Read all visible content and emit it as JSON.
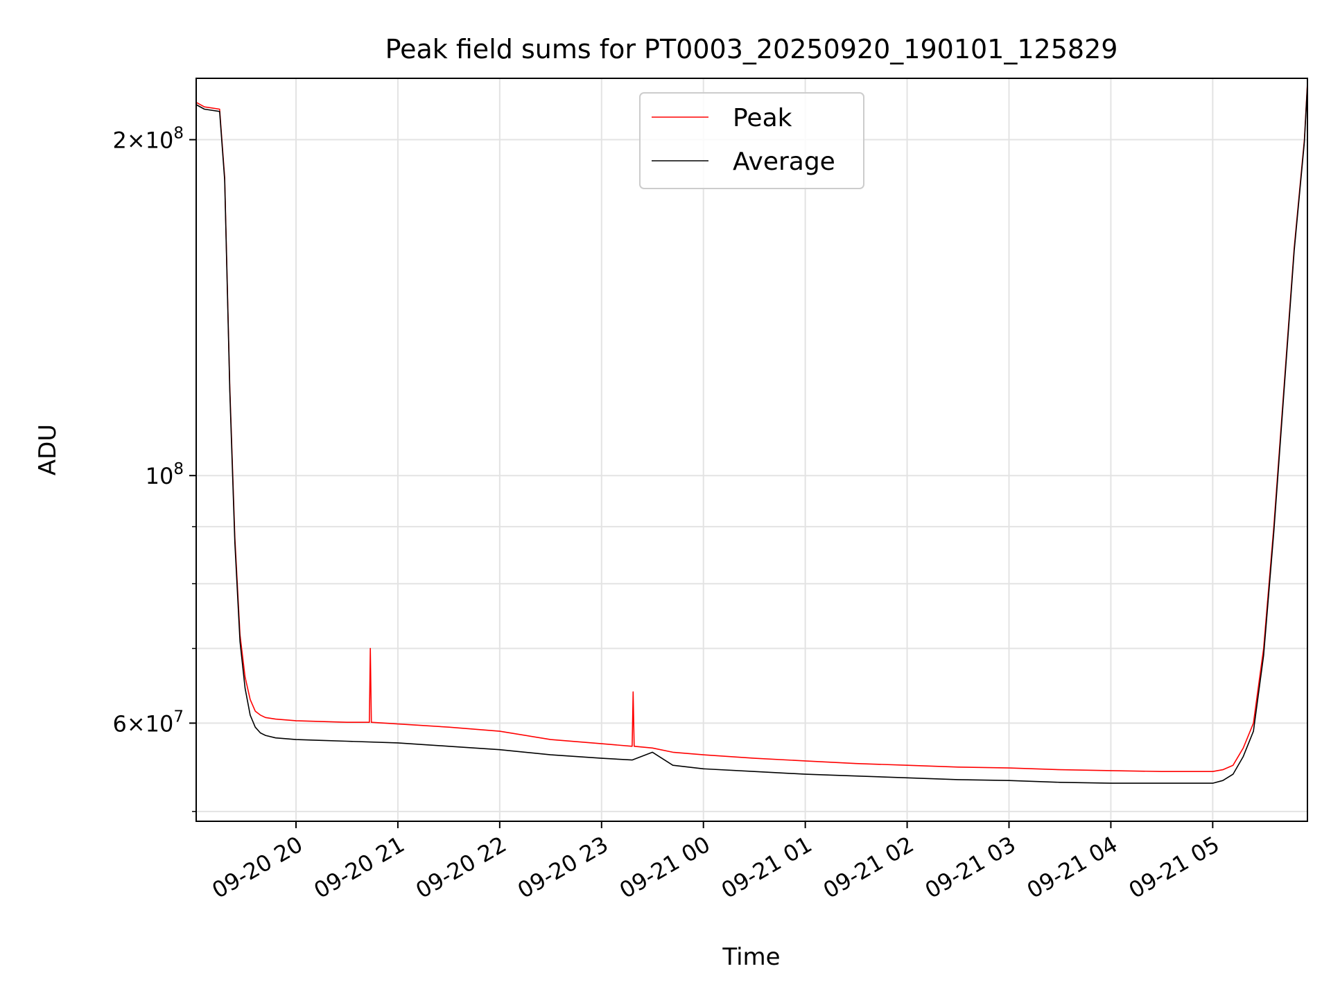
{
  "chart_data": {
    "type": "line",
    "title": "Peak field sums for PT0003_20250920_190101_125829",
    "xlabel": "Time",
    "ylabel": "ADU",
    "yscale": "log",
    "xlim_hours": [
      19.02,
      29.93
    ],
    "ylim": [
      49000000,
      227000000
    ],
    "grid": true,
    "legend_position": "top-center",
    "x_ticks": [
      {
        "hour": 20,
        "label": "09-20 20"
      },
      {
        "hour": 21,
        "label": "09-20 21"
      },
      {
        "hour": 22,
        "label": "09-20 22"
      },
      {
        "hour": 23,
        "label": "09-20 23"
      },
      {
        "hour": 24,
        "label": "09-21 00"
      },
      {
        "hour": 25,
        "label": "09-21 01"
      },
      {
        "hour": 26,
        "label": "09-21 02"
      },
      {
        "hour": 27,
        "label": "09-21 03"
      },
      {
        "hour": 28,
        "label": "09-21 04"
      },
      {
        "hour": 29,
        "label": "09-21 05"
      }
    ],
    "y_major_ticks": [
      {
        "value": 60000000,
        "mant": "6",
        "exp": "7"
      },
      {
        "value": 100000000,
        "mant": "",
        "exp": "8"
      },
      {
        "value": 200000000,
        "mant": "2",
        "exp": "8"
      }
    ],
    "y_minor_ticks": [
      50000000,
      70000000,
      80000000,
      90000000
    ],
    "series": [
      {
        "name": "Peak",
        "color": "#ff0000",
        "x": [
          19.02,
          19.1,
          19.25,
          19.3,
          19.35,
          19.4,
          19.45,
          19.5,
          19.55,
          19.6,
          19.65,
          19.7,
          19.8,
          20.0,
          20.25,
          20.5,
          20.72,
          20.73,
          20.74,
          21.0,
          21.5,
          22.0,
          22.5,
          23.0,
          23.3,
          23.31,
          23.32,
          23.5,
          23.7,
          24.0,
          24.5,
          25.0,
          25.5,
          26.0,
          26.5,
          27.0,
          27.5,
          28.0,
          28.5,
          29.0,
          29.1,
          29.2,
          29.3,
          29.4,
          29.5,
          29.6,
          29.7,
          29.8,
          29.9,
          29.93
        ],
        "values": [
          216000000,
          214000000,
          213000000,
          185000000,
          120000000,
          88000000,
          72000000,
          66000000,
          63000000,
          61500000,
          61000000,
          60700000,
          60500000,
          60300000,
          60200000,
          60100000,
          60100000,
          70000000,
          60100000,
          59900000,
          59500000,
          59000000,
          58000000,
          57500000,
          57200000,
          64000000,
          57200000,
          57000000,
          56500000,
          56200000,
          55800000,
          55500000,
          55200000,
          55000000,
          54800000,
          54700000,
          54500000,
          54400000,
          54300000,
          54300000,
          54500000,
          55000000,
          57000000,
          60000000,
          70000000,
          90000000,
          120000000,
          160000000,
          200000000,
          225000000
        ]
      },
      {
        "name": "Average",
        "color": "#000000",
        "x": [
          19.02,
          19.1,
          19.25,
          19.3,
          19.35,
          19.4,
          19.45,
          19.5,
          19.55,
          19.6,
          19.65,
          19.7,
          19.8,
          20.0,
          20.25,
          20.5,
          21.0,
          21.5,
          22.0,
          22.5,
          23.0,
          23.3,
          23.5,
          23.7,
          24.0,
          24.5,
          25.0,
          25.5,
          26.0,
          26.5,
          27.0,
          27.5,
          28.0,
          28.5,
          29.0,
          29.1,
          29.2,
          29.3,
          29.4,
          29.5,
          29.6,
          29.7,
          29.8,
          29.9,
          29.93
        ],
        "values": [
          215000000,
          213000000,
          212000000,
          184000000,
          119000000,
          87000000,
          71000000,
          64500000,
          61000000,
          59500000,
          58800000,
          58500000,
          58200000,
          58000000,
          57900000,
          57800000,
          57600000,
          57200000,
          56800000,
          56200000,
          55800000,
          55600000,
          56500000,
          55000000,
          54600000,
          54300000,
          54000000,
          53800000,
          53600000,
          53400000,
          53300000,
          53100000,
          53000000,
          53000000,
          53000000,
          53300000,
          54000000,
          56000000,
          59000000,
          69000000,
          89000000,
          119000000,
          159000000,
          199000000,
          224000000
        ]
      }
    ]
  }
}
